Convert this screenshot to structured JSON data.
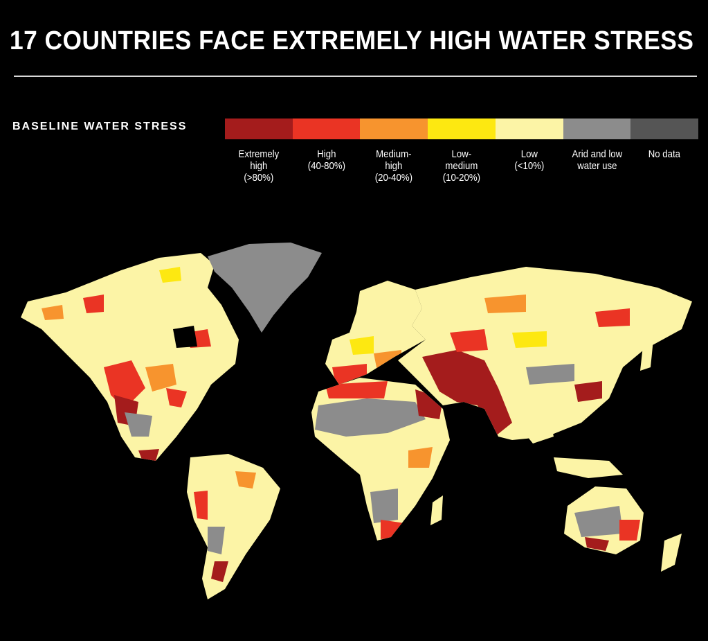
{
  "title": "17 COUNTRIES FACE EXTREMELY HIGH WATER STRESS",
  "legend": {
    "title": "BASELINE WATER STRESS",
    "categories": [
      {
        "lines": [
          "Extremely",
          "high",
          "(>80%)"
        ],
        "color": "#a41c1c"
      },
      {
        "lines": [
          "High",
          "(40-80%)"
        ],
        "color": "#ea3424"
      },
      {
        "lines": [
          "Medium-",
          "high",
          "(20-40%)"
        ],
        "color": "#f7942e"
      },
      {
        "lines": [
          "Low-",
          "medium",
          "(10-20%)"
        ],
        "color": "#fde811"
      },
      {
        "lines": [
          "Low",
          "(<10%)"
        ],
        "color": "#fcf4a6"
      },
      {
        "lines": [
          "Arid and low",
          "water use"
        ],
        "color": "#8c8c8c"
      },
      {
        "lines": [
          "No data"
        ],
        "color": "#555555"
      }
    ]
  },
  "map": {
    "ocean_color": "#000000",
    "land_base_color": "#fcf4a6",
    "regions": [
      {
        "name": "north-america",
        "base": "low"
      },
      {
        "name": "greenland",
        "base": "arid"
      },
      {
        "name": "south-america",
        "base": "low"
      },
      {
        "name": "europe",
        "base": "low"
      },
      {
        "name": "africa",
        "base": "low"
      },
      {
        "name": "asia",
        "base": "low"
      },
      {
        "name": "australia",
        "base": "low"
      }
    ]
  }
}
